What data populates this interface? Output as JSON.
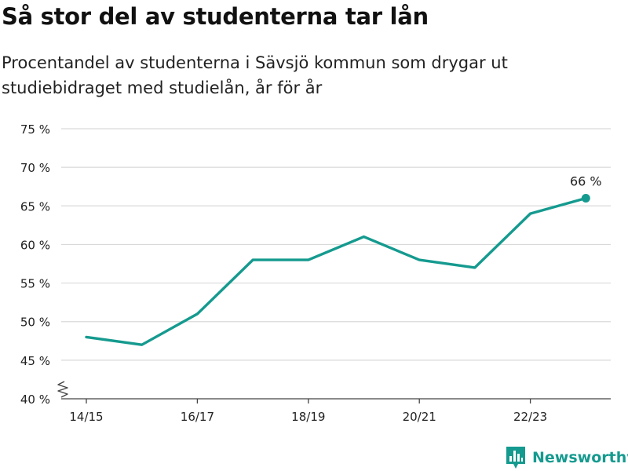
{
  "header": {
    "title": "Så stor del av studenterna tar lån",
    "subtitle": "Procentandel av studenterna i Sävsjö kommun som drygar ut studiebidraget med studielån, år för år"
  },
  "brand": {
    "name": "Newsworthy",
    "icon": "newsworthy-logo-icon"
  },
  "colors": {
    "line": "#159a8f",
    "grid": "#d9d9d9",
    "axis": "#444444",
    "text": "#222222",
    "brand": "#159a8f"
  },
  "chart_data": {
    "type": "line",
    "title": "Så stor del av studenterna tar lån",
    "subtitle": "Procentandel av studenterna i Sävsjö kommun som drygar ut studiebidraget med studielån, år för år",
    "x": [
      "14/15",
      "15/16",
      "16/17",
      "17/18",
      "18/19",
      "19/20",
      "20/21",
      "21/22",
      "22/23",
      "23/24"
    ],
    "x_tick_labels": [
      "14/15",
      "16/17",
      "18/19",
      "20/21",
      "22/23"
    ],
    "series": [
      {
        "values": [
          48,
          47,
          51,
          58,
          58,
          61,
          58,
          57,
          64,
          66
        ]
      }
    ],
    "ylim": [
      40,
      75
    ],
    "y_ticks": [
      40,
      45,
      50,
      55,
      60,
      65,
      70,
      75
    ],
    "y_tick_labels": [
      "40 %",
      "45 %",
      "50 %",
      "55 %",
      "60 %",
      "65 %",
      "70 %",
      "75 %"
    ],
    "annotations": [
      {
        "x": "23/24",
        "label": "66 %"
      }
    ],
    "axis_break": true,
    "grid": true,
    "xlabel": "",
    "ylabel": ""
  }
}
